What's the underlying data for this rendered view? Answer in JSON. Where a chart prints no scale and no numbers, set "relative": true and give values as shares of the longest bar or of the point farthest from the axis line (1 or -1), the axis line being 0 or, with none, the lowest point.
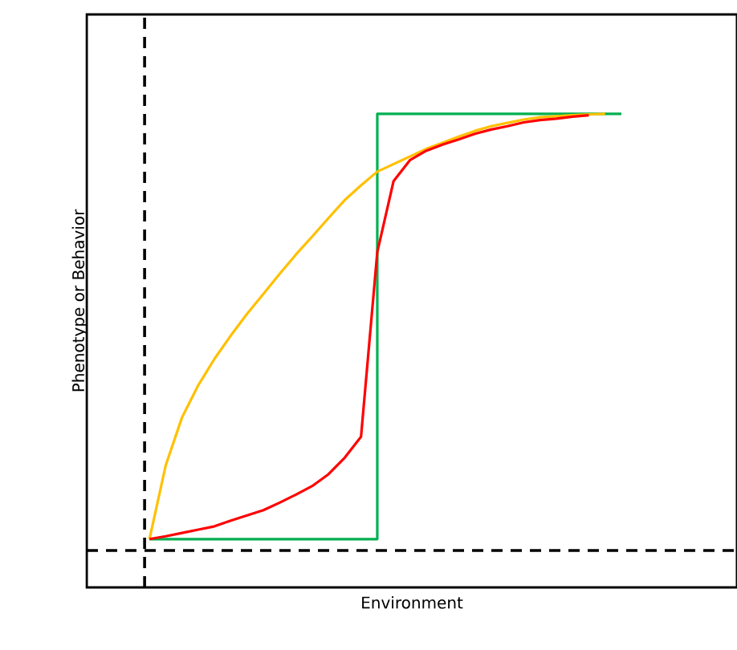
{
  "chart_data": {
    "type": "line",
    "relative": true,
    "xlabel": "Environment",
    "ylabel": "Phenotype or Behavior",
    "categories": [
      null,
      null,
      null,
      null,
      null,
      null,
      null,
      null,
      null,
      null,
      null,
      null,
      null,
      null,
      null,
      null,
      null,
      null,
      null,
      null,
      null,
      null,
      null,
      null,
      null,
      null,
      null,
      null,
      null,
      null
    ],
    "series": [
      {
        "type": "step",
        "color": "#00b050",
        "values": [
          0.102,
          0.102,
          0.102,
          0.102,
          0.102,
          0.102,
          0.102,
          0.102,
          0.102,
          0.102,
          0.102,
          0.102,
          0.102,
          0.102,
          1.0,
          1.0,
          1.0,
          1.0,
          1.0,
          1.0,
          1.0,
          1.0,
          1.0,
          1.0,
          1.0,
          1.0,
          1.0,
          1.0,
          1.0,
          1.0
        ]
      },
      {
        "color": "#ffc000",
        "values": [
          0.102,
          0.258,
          0.359,
          0.427,
          0.483,
          0.532,
          0.578,
          0.62,
          0.662,
          0.703,
          0.741,
          0.78,
          0.818,
          0.849,
          0.878,
          0.894,
          0.91,
          0.926,
          0.939,
          0.952,
          0.964,
          0.974,
          0.981,
          0.988,
          0.993,
          0.995,
          0.997,
          0.999,
          1.0,
          null
        ]
      },
      {
        "color": "#ff0000",
        "values": [
          0.102,
          0.108,
          0.115,
          0.122,
          0.129,
          0.141,
          0.152,
          0.163,
          0.179,
          0.196,
          0.214,
          0.239,
          0.274,
          0.318,
          0.708,
          0.858,
          0.902,
          0.922,
          0.935,
          0.946,
          0.958,
          0.967,
          0.974,
          0.982,
          0.987,
          0.99,
          0.994,
          0.997,
          null,
          null
        ]
      }
    ],
    "ref_lines": [
      {
        "axis": "y",
        "value": 0.078,
        "line_style": "dashed"
      }
    ]
  }
}
